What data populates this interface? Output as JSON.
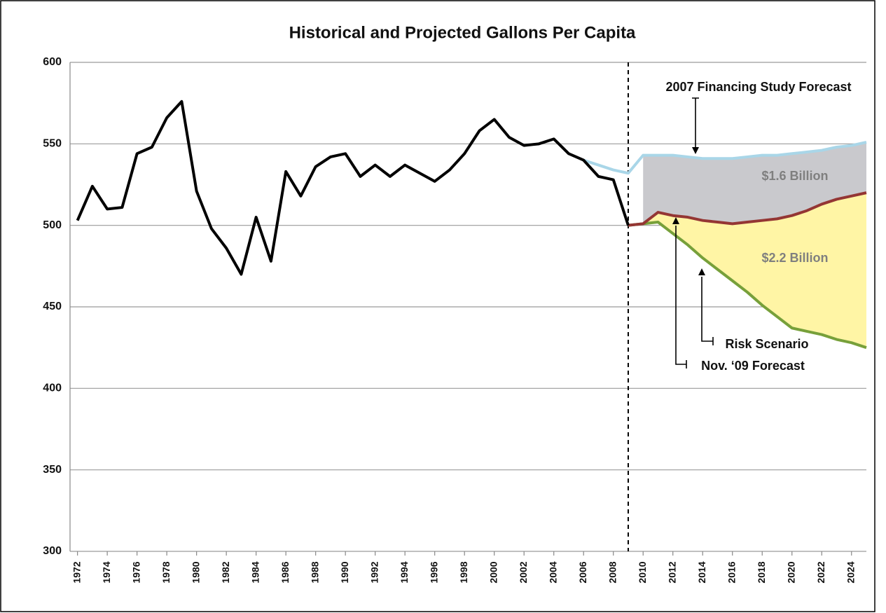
{
  "chart_data": {
    "type": "line",
    "title": "Historical and Projected Gallons Per Capita",
    "x": [
      1972,
      1973,
      1974,
      1975,
      1976,
      1977,
      1978,
      1979,
      1980,
      1981,
      1982,
      1983,
      1984,
      1985,
      1986,
      1987,
      1988,
      1989,
      1990,
      1991,
      1992,
      1993,
      1994,
      1995,
      1996,
      1997,
      1998,
      1999,
      2000,
      2001,
      2002,
      2003,
      2004,
      2005,
      2006,
      2007,
      2008,
      2009,
      2010,
      2011,
      2012,
      2013,
      2014,
      2015,
      2016,
      2017,
      2018,
      2019,
      2020,
      2021,
      2022,
      2023,
      2024,
      2025
    ],
    "xlim": [
      1971.5,
      2025
    ],
    "xticks": [
      1972,
      1974,
      1976,
      1978,
      1980,
      1982,
      1984,
      1986,
      1988,
      1990,
      1992,
      1994,
      1996,
      1998,
      2000,
      2002,
      2004,
      2006,
      2008,
      2010,
      2012,
      2014,
      2016,
      2018,
      2020,
      2022,
      2024
    ],
    "ylim": [
      300,
      600
    ],
    "yticks": [
      300,
      350,
      400,
      450,
      500,
      550,
      600
    ],
    "grid": true,
    "marker_year": 2009,
    "series": [
      {
        "color": "#000000",
        "values": [
          503,
          524,
          510,
          511,
          544,
          548,
          566,
          576,
          521,
          498,
          486,
          470,
          505,
          478,
          533,
          518,
          536,
          542,
          544,
          530,
          537,
          530,
          537,
          532,
          527,
          534,
          544,
          558,
          565,
          554,
          549,
          550,
          553,
          544,
          540,
          530,
          528,
          500,
          null,
          null,
          null,
          null,
          null,
          null,
          null,
          null,
          null,
          null,
          null,
          null,
          null,
          null,
          null,
          null
        ]
      },
      {
        "color": "#a9d6e8",
        "values": [
          null,
          null,
          null,
          null,
          null,
          null,
          null,
          null,
          null,
          null,
          null,
          null,
          null,
          null,
          null,
          null,
          null,
          null,
          null,
          null,
          null,
          null,
          null,
          null,
          null,
          null,
          null,
          null,
          null,
          null,
          null,
          null,
          null,
          null,
          540,
          537,
          534,
          532,
          543,
          543,
          543,
          542,
          541,
          541,
          541,
          542,
          543,
          543,
          544,
          545,
          546,
          548,
          549,
          551
        ]
      },
      {
        "color": "#943634",
        "values": [
          null,
          null,
          null,
          null,
          null,
          null,
          null,
          null,
          null,
          null,
          null,
          null,
          null,
          null,
          null,
          null,
          null,
          null,
          null,
          null,
          null,
          null,
          null,
          null,
          null,
          null,
          null,
          null,
          null,
          null,
          null,
          null,
          null,
          null,
          null,
          null,
          null,
          500,
          501,
          508,
          506,
          505,
          503,
          502,
          501,
          502,
          503,
          504,
          506,
          509,
          513,
          516,
          518,
          520
        ]
      },
      {
        "color": "#77a03a",
        "values": [
          null,
          null,
          null,
          null,
          null,
          null,
          null,
          null,
          null,
          null,
          null,
          null,
          null,
          null,
          null,
          null,
          null,
          null,
          null,
          null,
          null,
          null,
          null,
          null,
          null,
          null,
          null,
          null,
          null,
          null,
          null,
          null,
          null,
          null,
          null,
          null,
          null,
          500,
          501,
          502,
          495,
          488,
          480,
          473,
          466,
          459,
          451,
          444,
          437,
          435,
          433,
          430,
          428,
          425
        ]
      }
    ],
    "annotations": [
      "2007 Financing Study Forecast",
      "$1.6 Billion",
      "$2.2 Billion",
      "Risk Scenario",
      "Nov. ‘09 Forecast"
    ]
  }
}
